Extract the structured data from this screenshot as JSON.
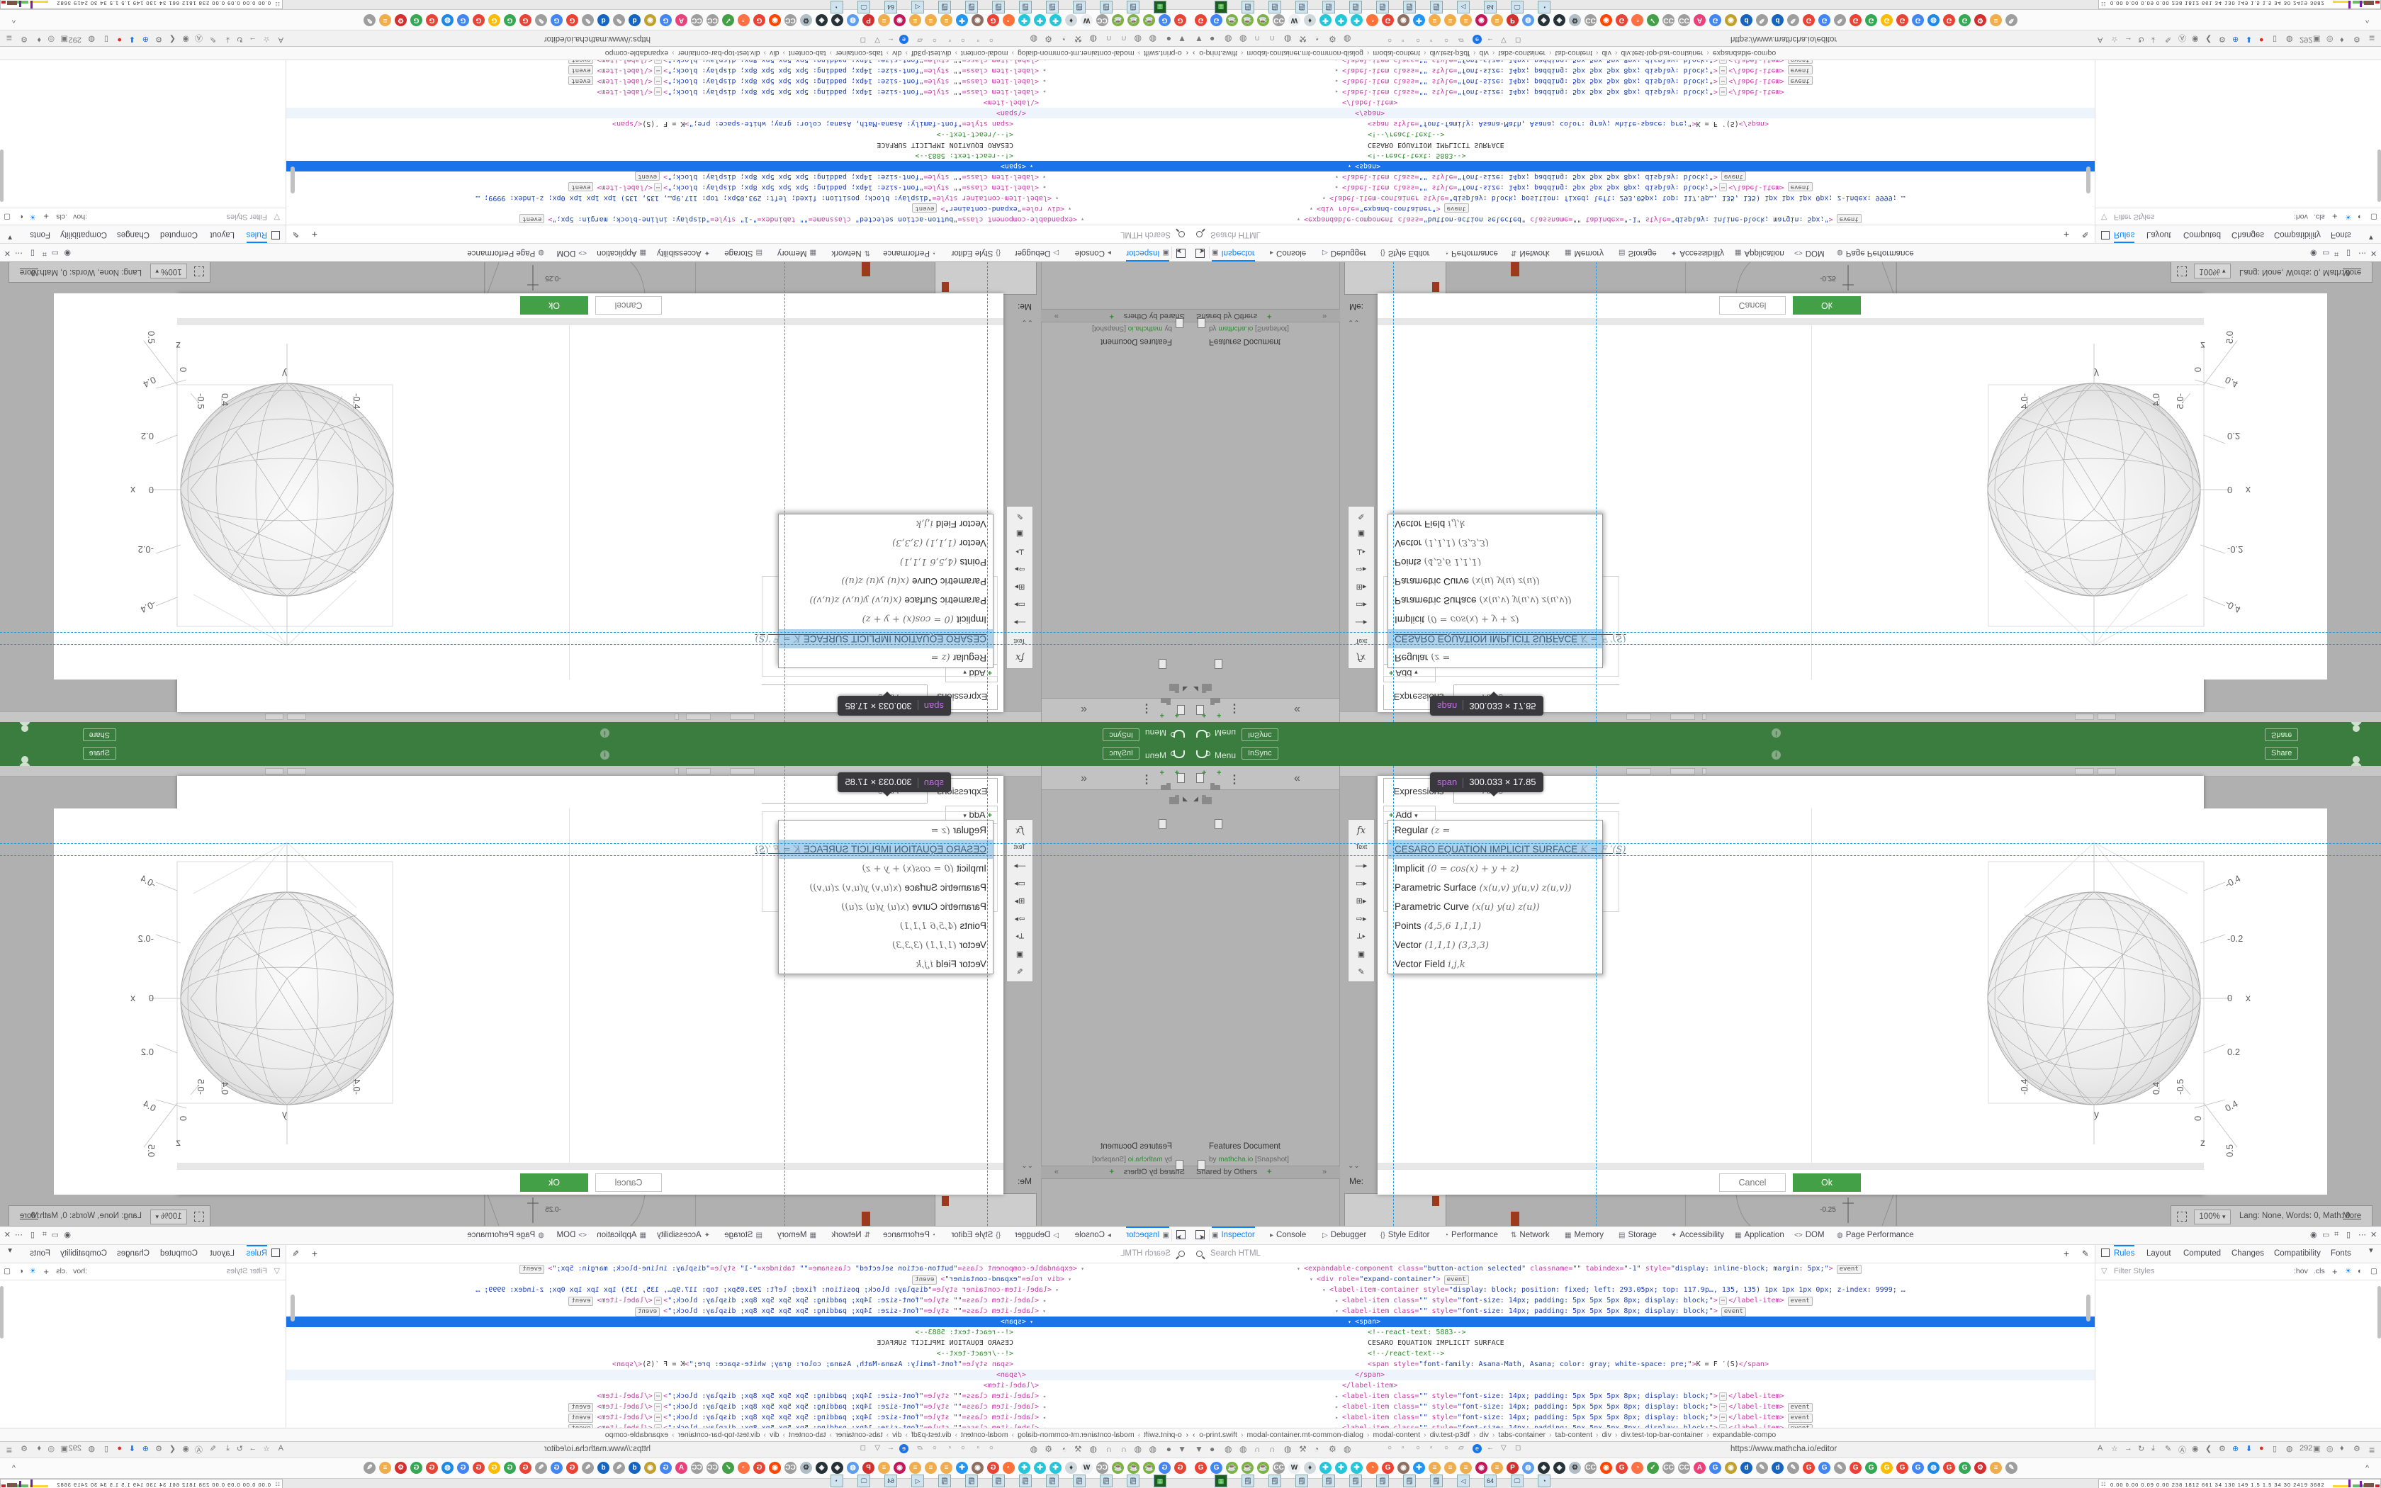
{
  "header": {
    "menu": "Menu",
    "sync": "InSync",
    "share": "Share"
  },
  "docs_panel": {
    "shared_header": "Shared by Others",
    "shared_plus": "+",
    "collapse": "»",
    "doc_title": "Features Document",
    "by": "by",
    "author": "mathcha.io",
    "snapshot": "[Snapshot]",
    "me": "Me:"
  },
  "tool_strip": [
    "fx",
    "Text",
    "—▸",
    "▭▸",
    "⊞▸",
    "⇨▸",
    "⟂▸",
    "▣",
    "✎"
  ],
  "dialog": {
    "tabs": [
      "Expressions",
      "Axes"
    ],
    "add_label": "Add",
    "add_caret": "▾",
    "tooltip": {
      "tag": "span",
      "dims": "300.033 × 17.85"
    },
    "menu_items": [
      {
        "label": "Regular",
        "math": "(z =",
        "hl": false
      },
      {
        "label": "CESARO EQUATION IMPLICIT SURFACE",
        "math": "K = F ′(S)",
        "hl": true
      },
      {
        "label": "Implicit",
        "math": "(0 = cos(x) + y + z)",
        "hl": false
      },
      {
        "label": "Parametric Surface",
        "math": "(x(u,v) y(u,v) z(u,v))",
        "hl": false
      },
      {
        "label": "Parametric Curve",
        "math": "(x(u) y(u) z(u))",
        "hl": false
      },
      {
        "label": "Points",
        "math": "(4,5,6 1,1,1)",
        "hl": false
      },
      {
        "label": "Vector",
        "math": "(1,1,1) (3,3,3)",
        "hl": false
      },
      {
        "label": "Vector Field",
        "math": "i,j,k",
        "hl": false
      }
    ],
    "cancel": "Cancel",
    "ok": "Ok"
  },
  "graph": {
    "x_ticks": [
      "-0.4",
      "-0.2",
      "0",
      "0.2",
      "0.4"
    ],
    "x_label": "x",
    "y_ticks": [
      "-0.4",
      "0.4"
    ],
    "y_label": "y",
    "z_ticks": [
      "-0.5",
      "0",
      "0.5"
    ],
    "z_label": "z",
    "bg_tick": "-0.25"
  },
  "status_bar": {
    "zoom": "100%",
    "info": "Lang: None, Words: 0, Math: 0",
    "more": "More"
  },
  "devtools": {
    "tabs": [
      {
        "label": "Inspector",
        "ic": "▣",
        "active": true,
        "x": 30
      },
      {
        "label": "Console",
        "ic": "▸",
        "active": false,
        "x": 112
      },
      {
        "label": "Debugger",
        "ic": "▷",
        "active": false,
        "x": 186
      },
      {
        "label": "Style Editor",
        "ic": "{}",
        "active": false,
        "x": 268
      },
      {
        "label": "Performance",
        "ic": "◔",
        "active": false,
        "x": 358
      },
      {
        "label": "Network",
        "ic": "⇅",
        "active": false,
        "x": 452
      },
      {
        "label": "Memory",
        "ic": "▦",
        "active": false,
        "x": 528
      },
      {
        "label": "Storage",
        "ic": "▤",
        "active": false,
        "x": 604
      },
      {
        "label": "Accessibility",
        "ic": "✦",
        "active": false,
        "x": 678
      },
      {
        "label": "Application",
        "ic": "▦",
        "active": false,
        "x": 768
      },
      {
        "label": "DOM",
        "ic": "<>",
        "active": false,
        "x": 852
      },
      {
        "label": "Page Performance",
        "ic": "◍",
        "active": false,
        "x": 912
      }
    ],
    "right_icons": [
      "◉",
      "▭",
      "⌗",
      "▯",
      "⋯",
      "✕"
    ],
    "search_placeholder": "Search HTML",
    "markup_rows": [
      {
        "y": 0,
        "ind": 150,
        "ar": "▾",
        "parts": [
          [
            "t",
            "<expandable-component"
          ],
          [
            "a",
            " class="
          ],
          [
            "v",
            "\"button-action selected\""
          ],
          [
            "a",
            " classname="
          ],
          [
            "v",
            "\"\""
          ],
          [
            "a",
            " tabindex="
          ],
          [
            "v",
            "\"-1\""
          ],
          [
            "a",
            " style="
          ],
          [
            "v",
            "\"display: inline-block; margin: 5px;\""
          ],
          [
            "t",
            ">"
          ]
        ],
        "ev": true
      },
      {
        "y": 15,
        "ind": 168,
        "ar": "▾",
        "parts": [
          [
            "t",
            "<div"
          ],
          [
            "a",
            " role="
          ],
          [
            "v",
            "\"expand-container\""
          ],
          [
            "t",
            ">"
          ]
        ],
        "ev": true
      },
      {
        "y": 30,
        "ind": 186,
        "ar": "▾",
        "parts": [
          [
            "t",
            "<label-item-container"
          ],
          [
            "a",
            " style="
          ],
          [
            "v",
            "\"display: block; position: fixed; left: 293.05px; top: 117.9p…, 135, 135) 1px 1px 1px 0px; z-index: 9999; …"
          ]
        ],
        "ev": false
      },
      {
        "y": 45,
        "ind": 204,
        "ar": "▸",
        "parts": [
          [
            "t",
            "<label-item"
          ],
          [
            "a",
            " class="
          ],
          [
            "v",
            "\"\""
          ],
          [
            "a",
            " style="
          ],
          [
            "v",
            "\"font-size: 14px; padding: 5px 5px 5px 8px; display: block;\""
          ],
          [
            "t",
            ">"
          ],
          [
            "ell",
            "⋯"
          ],
          [
            "t",
            "</label-item>"
          ]
        ],
        "ev": true
      },
      {
        "y": 60,
        "ind": 204,
        "ar": "▾",
        "parts": [
          [
            "t",
            "<label-item"
          ],
          [
            "a",
            " class="
          ],
          [
            "v",
            "\"\""
          ],
          [
            "a",
            " style="
          ],
          [
            "v",
            "\"font-size: 14px; padding: 5px 5px 5px 8px; display: block;\""
          ],
          [
            "t",
            ">"
          ]
        ],
        "ev": true
      },
      {
        "y": 75,
        "ind": 222,
        "ar": "▾",
        "sel": true,
        "parts": [
          [
            "t",
            "<span>"
          ]
        ],
        "ev": false
      },
      {
        "y": 90,
        "ind": 240,
        "ar": "",
        "parts": [
          [
            "c",
            "<!--react-text: 5883-->"
          ]
        ],
        "ev": false
      },
      {
        "y": 105,
        "ind": 240,
        "ar": "",
        "parts": [
          [
            "x",
            "CESARO EQUATION IMPLICIT SURFACE"
          ]
        ],
        "ev": false
      },
      {
        "y": 120,
        "ind": 240,
        "ar": "",
        "parts": [
          [
            "c",
            "<!--/react-text-->"
          ]
        ],
        "ev": false
      },
      {
        "y": 135,
        "ind": 240,
        "ar": "",
        "parts": [
          [
            "t",
            "<span"
          ],
          [
            "a",
            " style="
          ],
          [
            "v",
            "\"font-family: Asana-Math, Asana; color: gray; white-space: pre;\""
          ],
          [
            "t",
            ">"
          ],
          [
            "x",
            "K = F ′(S)"
          ],
          [
            "t",
            "</span>"
          ]
        ],
        "ev": false
      },
      {
        "y": 150,
        "ind": 222,
        "ar": "",
        "hov": true,
        "parts": [
          [
            "t",
            "</span>"
          ]
        ],
        "ev": false
      },
      {
        "y": 165,
        "ind": 204,
        "ar": "",
        "parts": [
          [
            "t",
            "</label-item>"
          ]
        ],
        "ev": false
      },
      {
        "y": 180,
        "ind": 204,
        "ar": "▸",
        "parts": [
          [
            "t",
            "<label-item"
          ],
          [
            "a",
            " class="
          ],
          [
            "v",
            "\"\""
          ],
          [
            "a",
            " style="
          ],
          [
            "v",
            "\"font-size: 14px; padding: 5px 5px 5px 8px; display: block;\""
          ],
          [
            "t",
            ">"
          ],
          [
            "ell",
            "⋯"
          ],
          [
            "t",
            "</label-item>"
          ]
        ],
        "ev": false
      },
      {
        "y": 195,
        "ind": 204,
        "ar": "▸",
        "parts": [
          [
            "t",
            "<label-item"
          ],
          [
            "a",
            " class="
          ],
          [
            "v",
            "\"\""
          ],
          [
            "a",
            " style="
          ],
          [
            "v",
            "\"font-size: 14px; padding: 5px 5px 5px 8px; display: block;\""
          ],
          [
            "t",
            ">"
          ],
          [
            "ell",
            "⋯"
          ],
          [
            "t",
            "</label-item>"
          ]
        ],
        "ev": true
      },
      {
        "y": 210,
        "ind": 204,
        "ar": "▸",
        "parts": [
          [
            "t",
            "<label-item"
          ],
          [
            "a",
            " class="
          ],
          [
            "v",
            "\"\""
          ],
          [
            "a",
            " style="
          ],
          [
            "v",
            "\"font-size: 14px; padding: 5px 5px 5px 8px; display: block;\""
          ],
          [
            "t",
            ">"
          ],
          [
            "ell",
            "⋯"
          ],
          [
            "t",
            "</label-item>"
          ]
        ],
        "ev": true
      },
      {
        "y": 225,
        "ind": 204,
        "ar": "▸",
        "parts": [
          [
            "t",
            "<label-item"
          ],
          [
            "a",
            " class="
          ],
          [
            "v",
            "\"\""
          ],
          [
            "a",
            " style="
          ],
          [
            "v",
            "\"font-size: 14px; padding: 5px 5px 5px 8px; display: block;\""
          ],
          [
            "t",
            ">"
          ],
          [
            "ell",
            "⋯"
          ],
          [
            "t",
            "</label-item>"
          ]
        ],
        "ev": true
      }
    ],
    "event_badge": "event",
    "breadcrumb": [
      "o-print.swift",
      "modal-container.mt-common-dialog",
      "modal-content",
      "div.test-p3df",
      "div",
      "tabs-container",
      "tab-content",
      "div",
      "div.test-top-bar-container",
      "expandable-compo"
    ],
    "sidebar_tabs": [
      {
        "label": "Rules",
        "active": true,
        "x": 26
      },
      {
        "label": "Layout",
        "active": false,
        "x": 72
      },
      {
        "label": "Computed",
        "active": false,
        "x": 124
      },
      {
        "label": "Changes",
        "active": false,
        "x": 192
      },
      {
        "label": "Compatibility",
        "active": false,
        "x": 252
      },
      {
        "label": "Fonts",
        "active": false,
        "x": 332
      }
    ],
    "filter_placeholder": "Filter Styles",
    "rules_icons": [
      ":hov",
      ".cls",
      "+",
      "☀",
      "◐",
      "▢"
    ]
  },
  "browser": {
    "url": "https://www.mathcha.io/editor",
    "nav_left_icons": [
      "▼",
      "●",
      "◍",
      "◍",
      "∩",
      "∩",
      "◍",
      "⚒",
      "◔",
      "⚙",
      "◍"
    ],
    "nav_mid_icons": [
      "○",
      "▫",
      "○",
      "▫",
      "○",
      "▱",
      "e",
      "←",
      "▽",
      "◻"
    ],
    "nav_right_icons": [
      "A",
      "☆",
      "→",
      "↻",
      "⤓",
      "✎",
      "Ⓐ",
      "◉",
      "❮",
      "⚙",
      "⊕",
      "⬇",
      "●",
      "▯",
      "◍",
      "292",
      "▣",
      "◎",
      "♦",
      "⚙"
    ],
    "hamburger": "≡",
    "favicons": [
      {
        "t": "G",
        "c": "#ea4335"
      },
      {
        "t": "G",
        "c": "#4285f4"
      },
      {
        "t": "☕",
        "c": "#7cb342"
      },
      {
        "t": "☕",
        "c": "#7cb342"
      },
      {
        "t": "☕",
        "c": "#7cb342"
      },
      {
        "t": "CC",
        "c": "#9e9e9e"
      },
      {
        "t": "W",
        "c": "#eceff1"
      },
      {
        "t": "♦",
        "c": "#cfd8dc"
      },
      {
        "t": "✚",
        "c": "#26c6da"
      },
      {
        "t": "✚",
        "c": "#26c6da"
      },
      {
        "t": "✚",
        "c": "#26c6da"
      },
      {
        "t": "◔",
        "c": "#ff7139"
      },
      {
        "t": "G",
        "c": "#ea4335"
      },
      {
        "t": "◉",
        "c": "#8d6e63"
      },
      {
        "t": "✚",
        "c": "#2196f3"
      },
      {
        "t": "≡",
        "c": "#f0ad4e"
      },
      {
        "t": "≡",
        "c": "#f0ad4e"
      },
      {
        "t": "≡",
        "c": "#f0ad4e"
      },
      {
        "t": "◉",
        "c": "#c2185b"
      },
      {
        "t": "≡",
        "c": "#f0ad4e"
      },
      {
        "t": "P",
        "c": "#d32f2f"
      },
      {
        "t": "◍",
        "c": "#5c9ded"
      },
      {
        "t": "◈",
        "c": "#263238"
      },
      {
        "t": "◈",
        "c": "#263238"
      },
      {
        "t": "⚙",
        "c": "#b0bec5"
      },
      {
        "t": "CC",
        "c": "#9e9e9e"
      },
      {
        "t": "◉",
        "c": "#ff4500"
      },
      {
        "t": "G",
        "c": "#ea4335"
      },
      {
        "t": "◔",
        "c": "#ff7043"
      },
      {
        "t": "✓",
        "c": "#43a047"
      },
      {
        "t": "CC",
        "c": "#9e9e9e"
      },
      {
        "t": "CC",
        "c": "#9e9e9e"
      },
      {
        "t": "A",
        "c": "#ec407a"
      },
      {
        "t": "G",
        "c": "#4285f4"
      },
      {
        "t": "◉",
        "c": "#c0a12f"
      },
      {
        "t": "d",
        "c": "#1565c0"
      },
      {
        "t": "✎",
        "c": "#9e9e9e"
      },
      {
        "t": "d",
        "c": "#1565c0"
      },
      {
        "t": "✎",
        "c": "#9e9e9e"
      },
      {
        "t": "G",
        "c": "#ea4335"
      },
      {
        "t": "G",
        "c": "#4285f4"
      },
      {
        "t": "✎",
        "c": "#9e9e9e"
      },
      {
        "t": "G",
        "c": "#ea4335"
      },
      {
        "t": "G",
        "c": "#34a853"
      },
      {
        "t": "G",
        "c": "#fbbc05"
      },
      {
        "t": "G",
        "c": "#ea4335"
      },
      {
        "t": "G",
        "c": "#4285f4"
      },
      {
        "t": "◍",
        "c": "#1e88e5"
      },
      {
        "t": "G",
        "c": "#ea4335"
      },
      {
        "t": "G",
        "c": "#34a853"
      },
      {
        "t": "⚙",
        "c": "#d32f2f"
      },
      {
        "t": "≡",
        "c": "#f0ad4e"
      },
      {
        "t": "✎",
        "c": "#9e9e9e"
      }
    ],
    "more_caret": "^",
    "launchers": [
      "▦",
      "🗒",
      "🗒",
      "🗒",
      "🗒",
      "🗒",
      "🗒",
      "🗒",
      "🗒",
      "◁",
      "64",
      "🖵",
      "◔"
    ],
    "monitor_values": [
      "0.00",
      "0.00",
      "0.09",
      "0.00",
      "238",
      "1812",
      "661",
      "34",
      "130",
      "149",
      "1.5",
      "1.5",
      "34",
      "30",
      "2419",
      "3682"
    ]
  },
  "colors": {
    "header_green": "#3b7d3e",
    "ok_green": "#43a047",
    "accent_blue": "#0a84ff",
    "selection_blue": "#1a73e8",
    "guide_blue": "#1e9be0",
    "highlight_row": "#aed2ec",
    "tag_magenta": "#c43ba6",
    "value_blue": "#1b3fae",
    "comment_green": "#2a8a27"
  }
}
